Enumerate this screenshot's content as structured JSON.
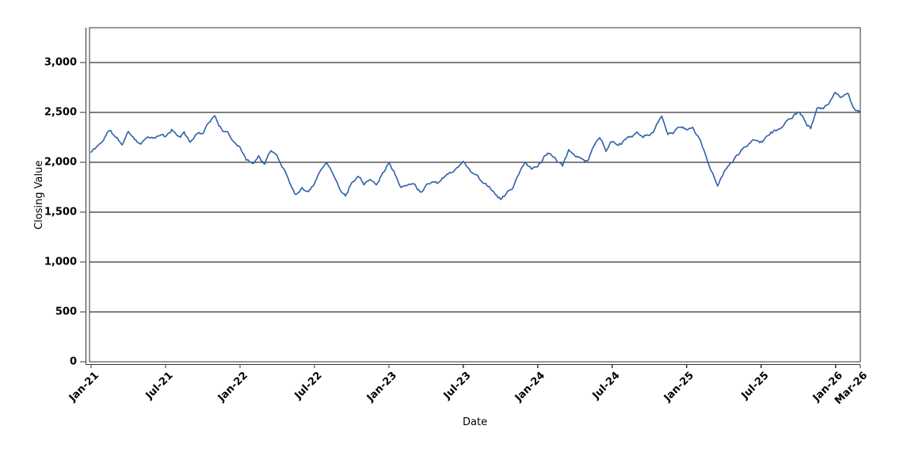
{
  "chart_data": {
    "type": "line",
    "xlabel": "Date",
    "ylabel": "Closing Value",
    "series_name": "Closing Value",
    "series_color": "#3060a8",
    "grid_color": "#000000",
    "frame_color": "#333333",
    "background": "#ffffff",
    "legend": "none",
    "grid": "horizontal-only",
    "ylim": [
      0,
      3350
    ],
    "xlim_months": [
      0,
      62
    ],
    "y_ticks": [
      0,
      500,
      1000,
      1500,
      2000,
      2500,
      3000
    ],
    "y_tick_labels": [
      "0",
      "500",
      "1,000",
      "1,500",
      "2,000",
      "2,500",
      "3,000"
    ],
    "x_ticks": [
      {
        "month": 0,
        "label": "Jan-21"
      },
      {
        "month": 6,
        "label": "Jul-21"
      },
      {
        "month": 12,
        "label": "Jan-22"
      },
      {
        "month": 18,
        "label": "Jul-22"
      },
      {
        "month": 24,
        "label": "Jan-23"
      },
      {
        "month": 30,
        "label": "Jul-23"
      },
      {
        "month": 36,
        "label": "Jan-24"
      },
      {
        "month": 42,
        "label": "Jul-24"
      },
      {
        "month": 48,
        "label": "Jan-25"
      },
      {
        "month": 54,
        "label": "Jul-25"
      },
      {
        "month": 60,
        "label": "Jan-26"
      },
      {
        "month": 62,
        "label": "Mar-26"
      }
    ],
    "anchors_month_value": [
      [
        0,
        2100
      ],
      [
        0.5,
        2160
      ],
      [
        1,
        2230
      ],
      [
        1.5,
        2330
      ],
      [
        2,
        2240
      ],
      [
        2.5,
        2180
      ],
      [
        3,
        2300
      ],
      [
        3.5,
        2250
      ],
      [
        4,
        2185
      ],
      [
        4.5,
        2280
      ],
      [
        5,
        2235
      ],
      [
        5.5,
        2270
      ],
      [
        6,
        2250
      ],
      [
        6.5,
        2320
      ],
      [
        7,
        2255
      ],
      [
        7.5,
        2285
      ],
      [
        8,
        2215
      ],
      [
        8.5,
        2280
      ],
      [
        9,
        2305
      ],
      [
        9.5,
        2420
      ],
      [
        10,
        2460
      ],
      [
        10.5,
        2340
      ],
      [
        11,
        2280
      ],
      [
        11.5,
        2210
      ],
      [
        12,
        2180
      ],
      [
        12.5,
        2030
      ],
      [
        13,
        2000
      ],
      [
        13.5,
        2060
      ],
      [
        14,
        1990
      ],
      [
        14.5,
        2110
      ],
      [
        15,
        2060
      ],
      [
        15.5,
        1950
      ],
      [
        16,
        1810
      ],
      [
        16.5,
        1675
      ],
      [
        17,
        1760
      ],
      [
        17.5,
        1700
      ],
      [
        18,
        1810
      ],
      [
        18.5,
        1950
      ],
      [
        19,
        2020
      ],
      [
        19.5,
        1880
      ],
      [
        20,
        1760
      ],
      [
        20.5,
        1670
      ],
      [
        21,
        1810
      ],
      [
        21.5,
        1885
      ],
      [
        22,
        1800
      ],
      [
        22.5,
        1865
      ],
      [
        23,
        1790
      ],
      [
        23.5,
        1905
      ],
      [
        24,
        1995
      ],
      [
        24.5,
        1890
      ],
      [
        25,
        1745
      ],
      [
        25.5,
        1770
      ],
      [
        26,
        1785
      ],
      [
        26.5,
        1710
      ],
      [
        27,
        1780
      ],
      [
        27.5,
        1825
      ],
      [
        28,
        1805
      ],
      [
        28.5,
        1875
      ],
      [
        29,
        1905
      ],
      [
        29.5,
        1960
      ],
      [
        30,
        2005
      ],
      [
        30.5,
        1930
      ],
      [
        31,
        1880
      ],
      [
        31.5,
        1810
      ],
      [
        32,
        1780
      ],
      [
        32.5,
        1705
      ],
      [
        33,
        1640
      ],
      [
        33.5,
        1685
      ],
      [
        34,
        1750
      ],
      [
        34.5,
        1900
      ],
      [
        35,
        1985
      ],
      [
        35.5,
        1930
      ],
      [
        36,
        1955
      ],
      [
        36.5,
        2055
      ],
      [
        37,
        2095
      ],
      [
        37.5,
        2010
      ],
      [
        38,
        1955
      ],
      [
        38.5,
        2105
      ],
      [
        39,
        2070
      ],
      [
        39.5,
        2045
      ],
      [
        40,
        2025
      ],
      [
        40.5,
        2150
      ],
      [
        41,
        2260
      ],
      [
        41.5,
        2130
      ],
      [
        42,
        2215
      ],
      [
        42.5,
        2150
      ],
      [
        43,
        2205
      ],
      [
        43.5,
        2250
      ],
      [
        44,
        2280
      ],
      [
        44.5,
        2230
      ],
      [
        45,
        2260
      ],
      [
        45.5,
        2360
      ],
      [
        46,
        2450
      ],
      [
        46.5,
        2270
      ],
      [
        47,
        2305
      ],
      [
        47.5,
        2360
      ],
      [
        48,
        2320
      ],
      [
        48.5,
        2355
      ],
      [
        49,
        2230
      ],
      [
        49.5,
        2090
      ],
      [
        50,
        1905
      ],
      [
        50.5,
        1785
      ],
      [
        51,
        1905
      ],
      [
        51.5,
        1985
      ],
      [
        52,
        2070
      ],
      [
        52.5,
        2130
      ],
      [
        53,
        2180
      ],
      [
        53.5,
        2220
      ],
      [
        54,
        2235
      ],
      [
        54.5,
        2270
      ],
      [
        55,
        2300
      ],
      [
        55.5,
        2345
      ],
      [
        56,
        2400
      ],
      [
        56.5,
        2435
      ],
      [
        57,
        2500
      ],
      [
        57.5,
        2420
      ],
      [
        58,
        2330
      ],
      [
        58.5,
        2510
      ],
      [
        59,
        2525
      ],
      [
        59.5,
        2605
      ],
      [
        60,
        2700
      ],
      [
        60.5,
        2655
      ],
      [
        61,
        2665
      ],
      [
        61.5,
        2520
      ],
      [
        62,
        2505
      ]
    ],
    "noise": {
      "seed": 11,
      "phi": 0.82,
      "sigma": 13,
      "jitter": 5,
      "points_per_month": 10,
      "walk_clamp": 55
    }
  }
}
